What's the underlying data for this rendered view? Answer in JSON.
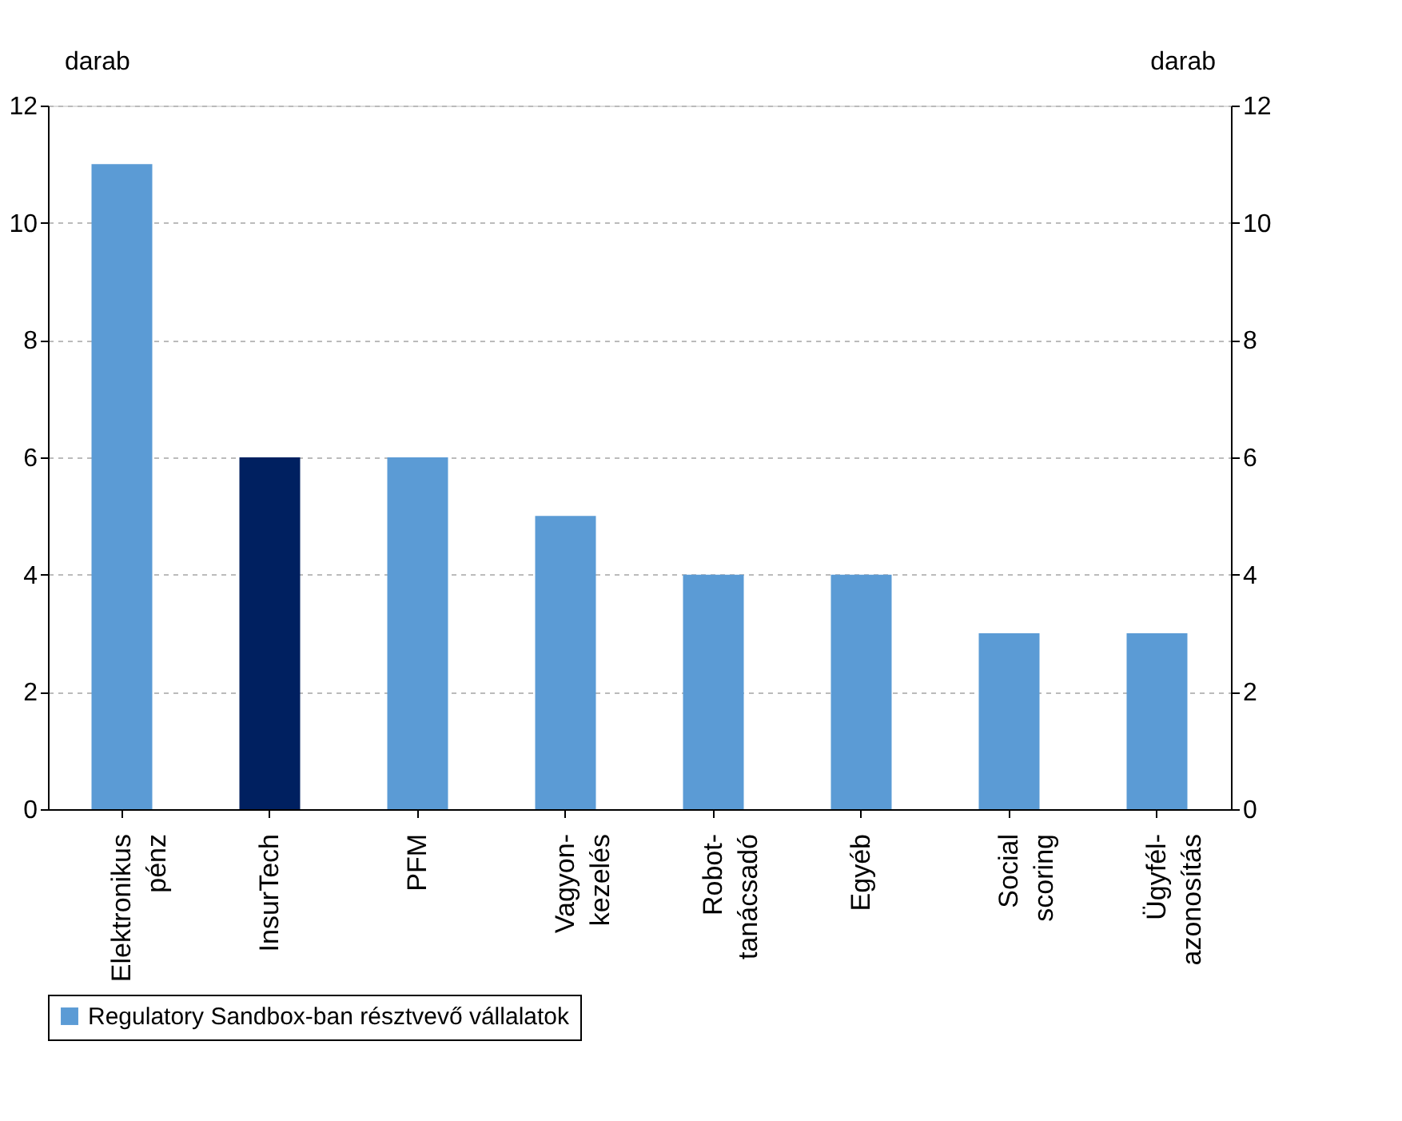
{
  "chart_data": {
    "type": "bar",
    "categories": [
      "Elektronikus\npénz",
      "InsurTech",
      "PFM",
      "Vagyon-\nkezelés",
      "Robot-\ntanácsadó",
      "Egyéb",
      "Social\nscoring",
      "Ügyfél-\nazonosítás"
    ],
    "series": [
      {
        "name": "Regulatory Sandbox-ban résztvevő vállalatok",
        "color": "#5b9bd5",
        "values": [
          11,
          6,
          6,
          5,
          4,
          4,
          3,
          3
        ],
        "colors": [
          "#5b9bd5",
          "#002060",
          "#5b9bd5",
          "#5b9bd5",
          "#5b9bd5",
          "#5b9bd5",
          "#5b9bd5",
          "#5b9bd5"
        ]
      }
    ],
    "ylabel": "darab",
    "y2label": "darab",
    "ylim": [
      0,
      12
    ],
    "yticks": [
      0,
      2,
      4,
      6,
      8,
      10,
      12
    ],
    "y2lim": [
      0,
      12
    ],
    "y2ticks": [
      0,
      2,
      4,
      6,
      8,
      10,
      12
    ],
    "grid": "y",
    "legend": "bottom"
  }
}
